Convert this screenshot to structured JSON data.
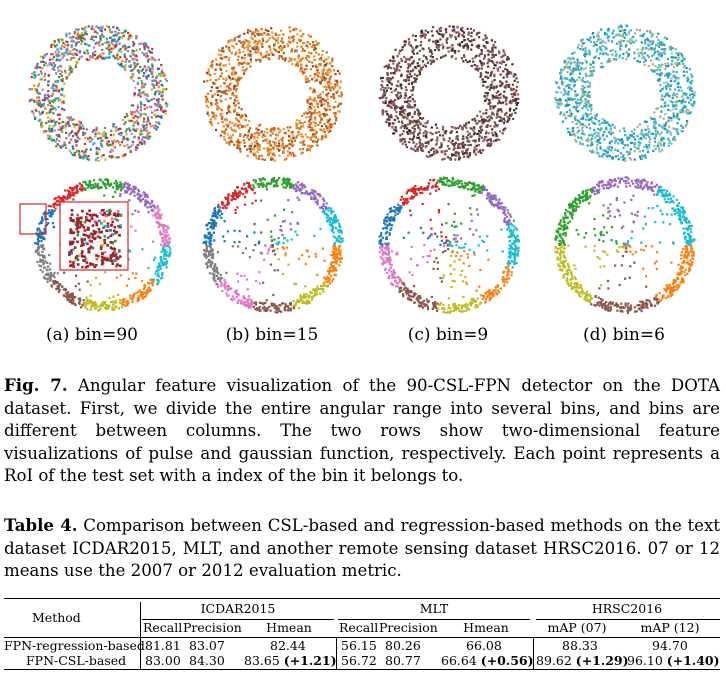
{
  "figure": {
    "subcaptions": [
      "(a) bin=90",
      "(b) bin=15",
      "(c) bin=9",
      "(d) bin=6"
    ],
    "palettes": {
      "row1": [
        [
          "#1f77b4",
          "#d62728",
          "#2ca02c",
          "#9467bd",
          "#e377c2",
          "#17becf",
          "#ff7f0e",
          "#bcbd22",
          "#8c564b",
          "#7f7f7f"
        ],
        [
          "#e07b1a",
          "#f08a24",
          "#c8641a",
          "#d67020",
          "#b85a1c",
          "#f59c3a",
          "#8a4a2a",
          "#e89040"
        ],
        [
          "#5a3a3a",
          "#6e4444",
          "#4a3030",
          "#7a5050",
          "#8c5a5a",
          "#3e2a2a",
          "#a06060",
          "#6a4a3a"
        ],
        [
          "#2fb0b8",
          "#1aa0a8",
          "#47c0c4",
          "#6ab0c8",
          "#2a90b0",
          "#88c8d0",
          "#b0b070",
          "#3aa8c0"
        ]
      ],
      "row2": [
        [
          "#1f77b4",
          "#d62728",
          "#2ca02c",
          "#9467bd",
          "#e377c2",
          "#17becf",
          "#ff7f0e",
          "#bcbd22",
          "#8c564b",
          "#7f7f7f"
        ],
        [
          "#1f77b4",
          "#d62728",
          "#2ca02c",
          "#9467bd",
          "#17becf",
          "#ff7f0e",
          "#bcbd22",
          "#8c564b",
          "#e377c2",
          "#7f7f7f"
        ],
        [
          "#1f77b4",
          "#d62728",
          "#2ca02c",
          "#9467bd",
          "#17becf",
          "#ff7f0e",
          "#bcbd22",
          "#8c564b",
          "#e377c2"
        ],
        [
          "#2ca02c",
          "#9467bd",
          "#17becf",
          "#ff7f0e",
          "#8c564b",
          "#bcbd22"
        ]
      ]
    }
  },
  "fig_caption": {
    "label": "Fig. 7.",
    "text": " Angular feature visualization of the 90-CSL-FPN detector on the DOTA dataset. First, we divide the entire angular range into several bins, and bins are different between columns. The two rows show two-dimensional feature visualizations of pulse and gaussian function, respectively. Each point represents a RoI of the test set with a index of the bin it belongs to."
  },
  "table_caption": {
    "label": "Table 4.",
    "text": " Comparison between CSL-based and regression-based methods on the text dataset ICDAR2015, MLT, and another remote sensing dataset HRSC2016. 07 or 12 means use the 2007 or 2012 evaluation metric."
  },
  "table": {
    "method_header": "Method",
    "groups": [
      "ICDAR2015",
      "MLT",
      "HRSC2016"
    ],
    "subheaders": {
      "icdar": [
        "Recall",
        "Precision",
        "Hmean"
      ],
      "mlt": [
        "Recall",
        "Precision",
        "Hmean"
      ],
      "hrsc": [
        "mAP (07)",
        "mAP (12)"
      ]
    },
    "rows": [
      {
        "method": "FPN-regression-based",
        "icdar": [
          "81.81",
          "83.07",
          "82.44"
        ],
        "mlt": [
          "56.15",
          "80.26",
          "66.08"
        ],
        "hrsc": [
          "88.33",
          "94.70"
        ],
        "gains": {
          "icdar": "",
          "mlt": "",
          "hrsc07": "",
          "hrsc12": ""
        }
      },
      {
        "method": "FPN-CSL-based",
        "icdar": [
          "83.00",
          "84.30",
          "83.65"
        ],
        "mlt": [
          "56.72",
          "80.77",
          "66.64"
        ],
        "hrsc": [
          "89.62",
          "96.10"
        ],
        "gains": {
          "icdar": "(+1.21)",
          "mlt": "(+0.56)",
          "hrsc07": "(+1.29)",
          "hrsc12": "(+1.40)"
        }
      }
    ]
  }
}
